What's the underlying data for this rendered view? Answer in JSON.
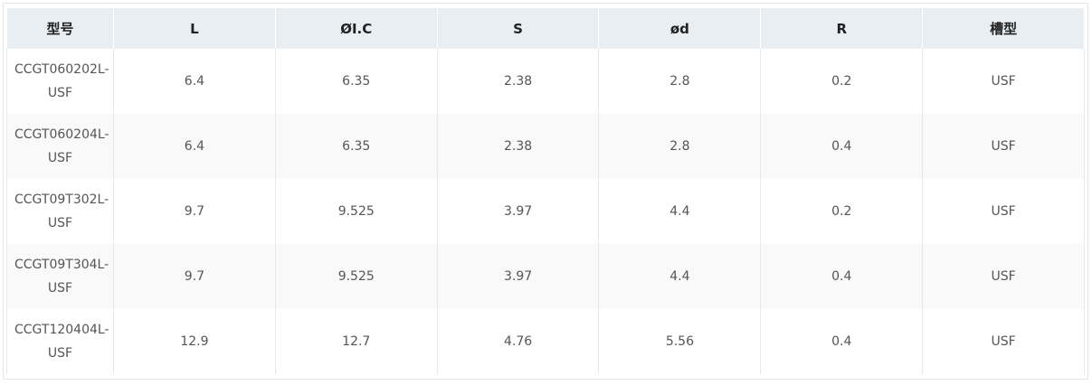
{
  "table": {
    "header": [
      "型号",
      "L",
      "ØI.C",
      "S",
      "ød",
      "R",
      "槽型"
    ],
    "rows": [
      [
        "CCGT060202L-USF",
        "6.4",
        "6.35",
        "2.38",
        "2.8",
        "0.2",
        "USF"
      ],
      [
        "CCGT060204L-USF",
        "6.4",
        "6.35",
        "2.38",
        "2.8",
        "0.4",
        "USF"
      ],
      [
        "CCGT09T302L-USF",
        "9.7",
        "9.525",
        "3.97",
        "4.4",
        "0.2",
        "USF"
      ],
      [
        "CCGT09T304L-USF",
        "9.7",
        "9.525",
        "3.97",
        "4.4",
        "0.4",
        "USF"
      ],
      [
        "CCGT120404L-USF",
        "12.9",
        "12.7",
        "4.76",
        "5.56",
        "0.4",
        "USF"
      ]
    ]
  }
}
